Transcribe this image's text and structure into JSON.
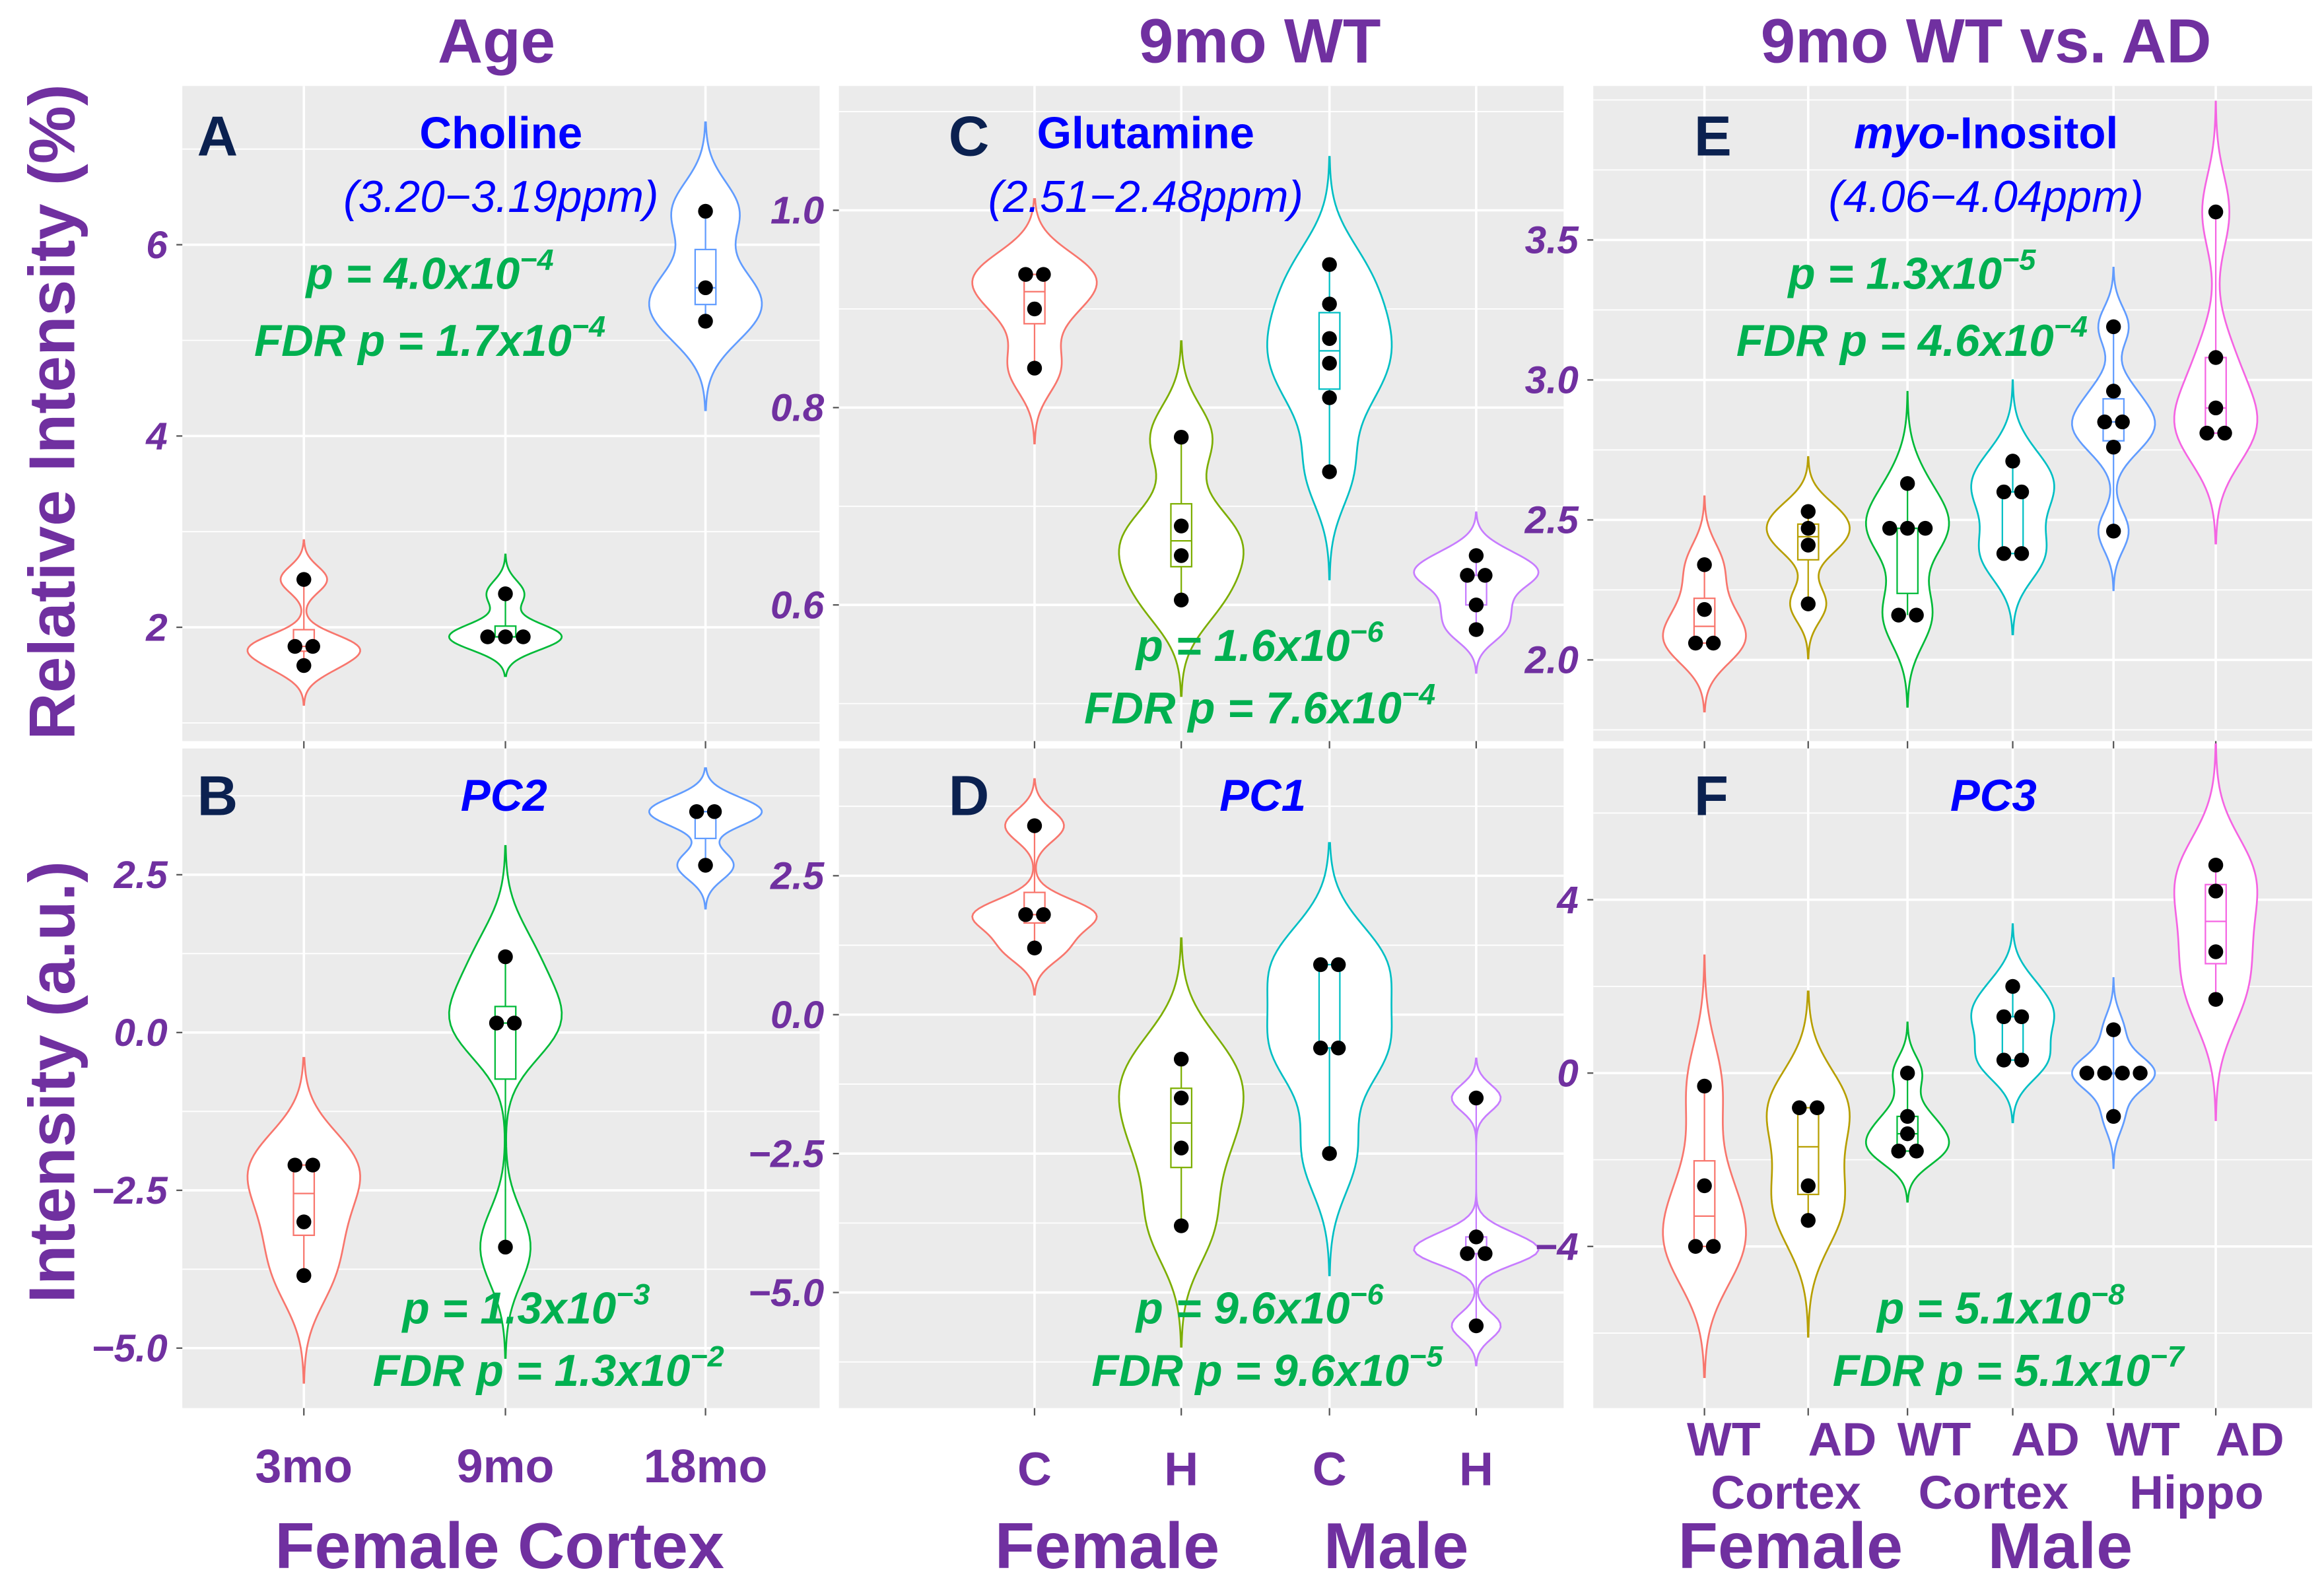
{
  "column_titles": [
    "Age",
    "9mo WT",
    "9mo WT vs. AD"
  ],
  "y_labels": {
    "top": "Relative Intensity (%)",
    "bottom": "Intensity (a.u.)"
  },
  "group_labels": {
    "col1": [
      "Female Cortex"
    ],
    "col2": [
      "Female",
      "Male"
    ],
    "col3": [
      "Female",
      "Male"
    ]
  },
  "x_tick_labels": {
    "col1": [
      "3mo",
      "9mo",
      "18mo"
    ],
    "col2": [
      "C",
      "H",
      "C",
      "H"
    ],
    "col3_line1": [
      "WT",
      "AD",
      "WT",
      "AD",
      "WT",
      "AD"
    ],
    "col3_line2": [
      "Cortex",
      "Cortex",
      "Hippo"
    ]
  },
  "colors": {
    "title": "#7030A0",
    "letter": "#0B2150",
    "compound": "#0000FF",
    "stats": "#00B050",
    "panel_bg": "#EBEBEB",
    "pal3": [
      "#F8766D",
      "#00BA38",
      "#619CFF"
    ],
    "pal4": [
      "#F8766D",
      "#7CAE00",
      "#00BFC4",
      "#C77CFF"
    ],
    "pal6": [
      "#F8766D",
      "#B79F00",
      "#00BA38",
      "#00BFC4",
      "#619CFF",
      "#F564E3"
    ]
  },
  "chart_data": [
    {
      "panel": "A",
      "type": "violin",
      "title": "Choline",
      "subtitle": "(3.20−3.19ppm)",
      "p": {
        "base": "p = 4.0x10",
        "exp": "−4"
      },
      "fdr": {
        "base": "FDR p = 1.7x10",
        "exp": "−4"
      },
      "categories": [
        "3mo",
        "9mo",
        "18mo"
      ],
      "palette": "pal3",
      "groups": [
        [
          2.5,
          1.8,
          1.8,
          1.6
        ],
        [
          2.35,
          1.9,
          1.9,
          1.9
        ],
        [
          6.35,
          5.55,
          5.2
        ]
      ],
      "ylim": [
        0.81,
        7.66
      ],
      "yticks": [
        2,
        4,
        6
      ],
      "ytick_labels": [
        "2",
        "4",
        "6"
      ]
    },
    {
      "panel": "B",
      "type": "violin",
      "title": "PC2",
      "subtitle": "",
      "p": {
        "base": "p = 1.3x10",
        "exp": "−3"
      },
      "fdr": {
        "base": "FDR p = 1.3x10",
        "exp": "−2"
      },
      "categories": [
        "3mo",
        "9mo",
        "18mo"
      ],
      "palette": "pal3",
      "groups": [
        [
          -2.1,
          -2.1,
          -3.0,
          -3.85
        ],
        [
          1.2,
          0.15,
          0.15,
          -3.4
        ],
        [
          3.5,
          3.5,
          2.65
        ]
      ],
      "ylim": [
        -5.95,
        4.5
      ],
      "yticks": [
        2.5,
        0,
        -2.5,
        -5
      ],
      "ytick_labels": [
        "2.5",
        "0.0",
        "−2.5",
        "−5.0"
      ]
    },
    {
      "panel": "C",
      "type": "violin",
      "title": "Glutamine",
      "subtitle": "(2.51−2.48ppm)",
      "p": {
        "base": "p = 1.6x10",
        "exp": "−6"
      },
      "fdr": {
        "base": "FDR p = 7.6x10",
        "exp": "−4"
      },
      "categories": [
        "Female C",
        "Female H",
        "Male C",
        "Male H"
      ],
      "palette": "pal4",
      "groups": [
        [
          0.935,
          0.935,
          0.9,
          0.84
        ],
        [
          0.77,
          0.68,
          0.65,
          0.605
        ],
        [
          0.945,
          0.905,
          0.87,
          0.845,
          0.81,
          0.735
        ],
        [
          0.65,
          0.63,
          0.63,
          0.6,
          0.575
        ]
      ],
      "ylim": [
        0.462,
        1.126
      ],
      "yticks": [
        1.0,
        0.8,
        0.6
      ],
      "ytick_labels": [
        "1.0",
        "0.8",
        "0.6"
      ]
    },
    {
      "panel": "D",
      "type": "violin",
      "title": "PC1",
      "subtitle": "",
      "p": {
        "base": "p = 9.6x10",
        "exp": "−6"
      },
      "fdr": {
        "base": "FDR p = 9.6x10",
        "exp": "−5"
      },
      "categories": [
        "Female C",
        "Female H",
        "Male C",
        "Male H"
      ],
      "palette": "pal4",
      "groups": [
        [
          3.4,
          1.8,
          1.8,
          1.2
        ],
        [
          -0.8,
          -1.5,
          -2.4,
          -3.8
        ],
        [
          0.9,
          0.9,
          -0.6,
          -0.6,
          -2.5
        ],
        [
          -1.5,
          -4.0,
          -4.3,
          -4.3,
          -5.6
        ]
      ],
      "ylim": [
        -7.08,
        4.79
      ],
      "yticks": [
        2.5,
        0,
        -2.5,
        -5
      ],
      "ytick_labels": [
        "2.5",
        "0.0",
        "−2.5",
        "−5.0"
      ]
    },
    {
      "panel": "E",
      "type": "violin",
      "title": "-Inositol",
      "title_prefix": "myo",
      "subtitle": "(4.06−4.04ppm)",
      "p": {
        "base": "p = 1.3x10",
        "exp": "−5"
      },
      "fdr": {
        "base": "FDR p = 4.6x10",
        "exp": "−4"
      },
      "categories": [
        "Female WT Cortex",
        "Female AD Cortex",
        "Male WT Cortex",
        "Male AD Cortex",
        "Male WT Hippo",
        "Male AD Hippo"
      ],
      "palette": "pal6",
      "groups": [
        [
          2.34,
          2.18,
          2.06,
          2.06
        ],
        [
          2.53,
          2.47,
          2.41,
          2.2
        ],
        [
          2.63,
          2.47,
          2.47,
          2.47,
          2.16,
          2.16
        ],
        [
          2.71,
          2.6,
          2.6,
          2.38,
          2.38
        ],
        [
          3.19,
          2.96,
          2.85,
          2.85,
          2.76,
          2.46
        ],
        [
          3.6,
          3.08,
          2.9,
          2.81,
          2.81
        ]
      ],
      "ylim": [
        1.71,
        4.05
      ],
      "yticks": [
        3.5,
        3.0,
        2.5,
        2.0
      ],
      "ytick_labels": [
        "3.5",
        "3.0",
        "2.5",
        "2.0"
      ]
    },
    {
      "panel": "F",
      "type": "violin",
      "title": "PC3",
      "subtitle": "",
      "p": {
        "base": "p = 5.1x10",
        "exp": "−8"
      },
      "fdr": {
        "base": "FDR p = 5.1x10",
        "exp": "−7"
      },
      "categories": [
        "Female WT Cortex",
        "Female AD Cortex",
        "Male WT Cortex",
        "Male AD Cortex",
        "Male WT Hippo",
        "Male AD Hippo"
      ],
      "palette": "pal6",
      "groups": [
        [
          -0.3,
          -2.6,
          -4.0,
          -4.0
        ],
        [
          -0.8,
          -0.8,
          -2.6,
          -3.4
        ],
        [
          0.0,
          -1.0,
          -1.4,
          -1.8,
          -1.8
        ],
        [
          2.0,
          1.3,
          1.3,
          0.3,
          0.3
        ],
        [
          1.0,
          0.0,
          0.0,
          0.0,
          0.0,
          -1.0
        ],
        [
          4.8,
          4.2,
          2.8,
          1.7
        ]
      ],
      "ylim": [
        -7.73,
        7.49
      ],
      "yticks": [
        4,
        0,
        -4
      ],
      "ytick_labels": [
        "4",
        "0",
        "−4"
      ]
    }
  ]
}
